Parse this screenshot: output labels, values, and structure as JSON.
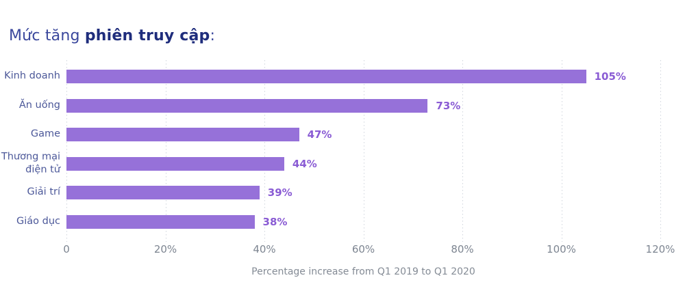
{
  "title": {
    "prefix": "Mức tăng ",
    "bold": "phiên truy cập",
    "suffix": ":"
  },
  "chart_data": {
    "type": "bar",
    "orientation": "horizontal",
    "title": "Mức tăng phiên truy cập:",
    "categories": [
      "Kinh doanh",
      "Ăn uống",
      "Game",
      "Thương mại điện tử",
      "Giải trí",
      "Giáo dục"
    ],
    "values": [
      105,
      73,
      47,
      44,
      39,
      38
    ],
    "value_labels": [
      "105%",
      "73%",
      "47%",
      "44%",
      "39%",
      "38%"
    ],
    "xlabel": "Percentage increase from Q1 2019 to Q1 2020",
    "x_ticks": [
      "0",
      "20%",
      "40%",
      "60%",
      "80%",
      "100%",
      "120%"
    ],
    "x_tick_values": [
      0,
      20,
      40,
      60,
      80,
      100,
      120
    ],
    "xlim": [
      0,
      120
    ],
    "grid": "dotted-vertical-at-ticks",
    "legend": "none",
    "colors": {
      "bar": "#9671d9",
      "value_label": "#8a5cd4",
      "title_regular": "#3a479c",
      "title_bold": "#1f2d7c",
      "category_label": "#4c5899",
      "tick_label": "#7d8591",
      "axis_label": "#848b95",
      "gridline": "#cfd4dc",
      "background": "#ffffff"
    }
  }
}
